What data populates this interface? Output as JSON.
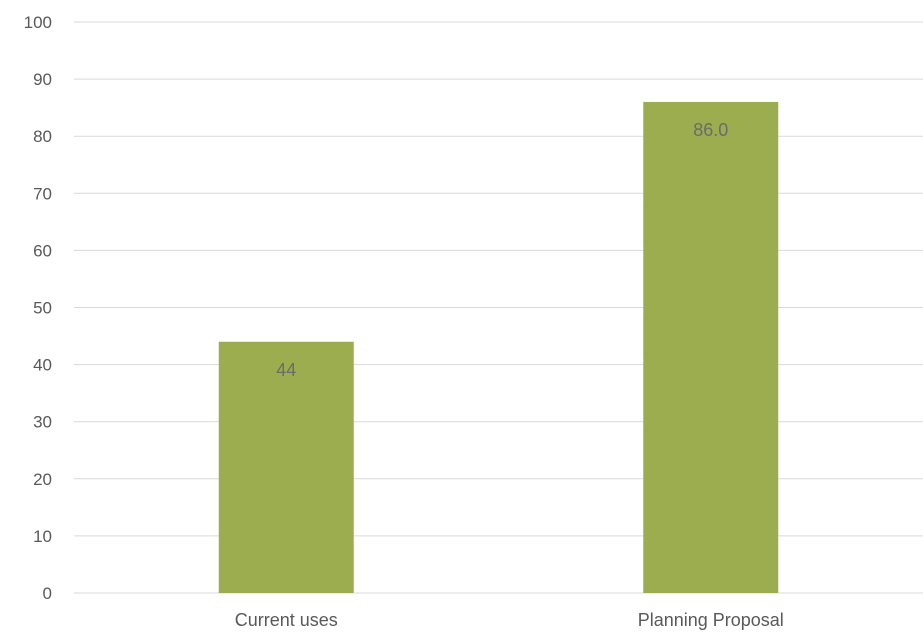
{
  "chart_data": {
    "type": "bar",
    "categories": [
      "Current uses",
      "Planning Proposal"
    ],
    "values": [
      44,
      86.0
    ],
    "data_labels": [
      "44",
      "86.0"
    ],
    "title": "",
    "xlabel": "",
    "ylabel": "",
    "ylim": [
      0,
      100
    ],
    "yticks": [
      0,
      10,
      20,
      30,
      40,
      50,
      60,
      70,
      80,
      90,
      100
    ],
    "grid": true,
    "legend": "none",
    "colors": {
      "bar": "#9bad4f",
      "grid": "#d9d9d9",
      "text": "#595959"
    }
  }
}
